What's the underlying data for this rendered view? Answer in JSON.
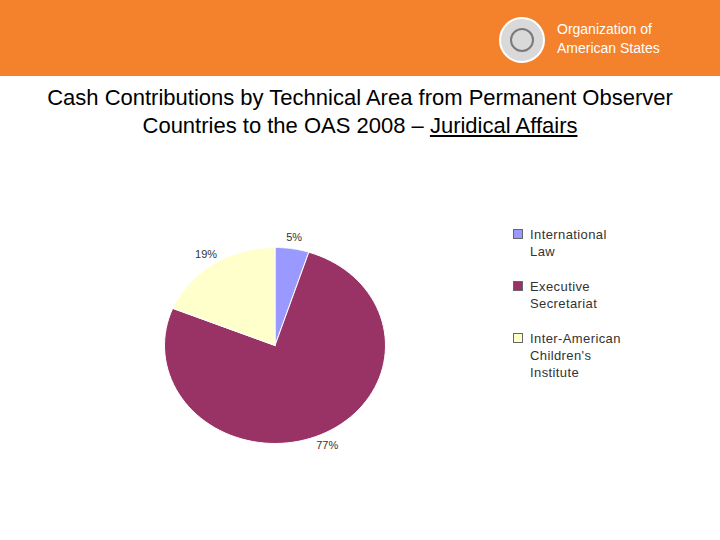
{
  "header": {
    "organization": "Organization of American States"
  },
  "chart_data": {
    "type": "pie",
    "title": "Cash Contributions by Technical Area from Permanent Observer Countries to the OAS 2008 –",
    "subtitle": "Juridical Affairs",
    "categories": [
      "International Law",
      "Executive Secretariat",
      "Inter-American Children's Institute"
    ],
    "values": [
      5,
      77,
      19
    ],
    "value_labels": [
      "5%",
      "77%",
      "19%"
    ],
    "colors": [
      "#9999ff",
      "#993366",
      "#ffffcc"
    ],
    "data_labels": true,
    "legend": "right"
  }
}
